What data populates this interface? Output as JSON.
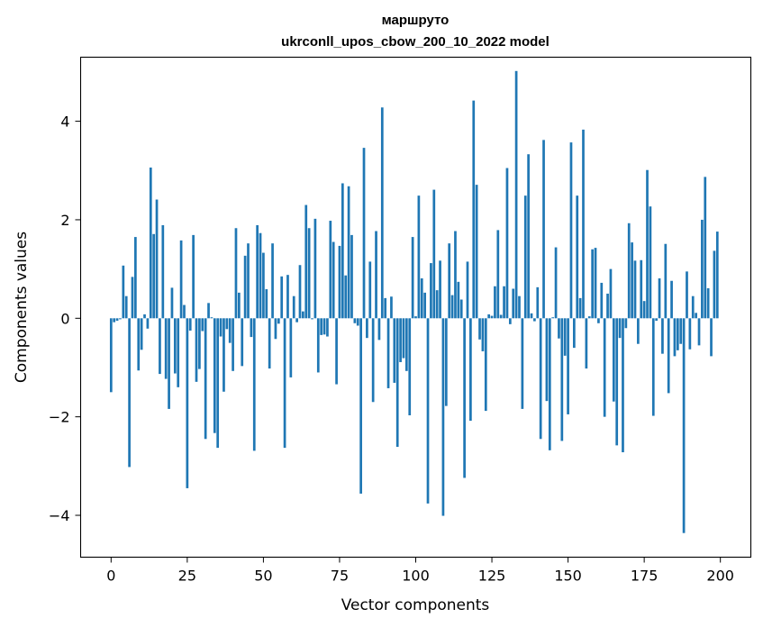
{
  "chart_data": {
    "type": "bar",
    "title": "маршруто",
    "subtitle": "ukrconll_upos_cbow_200_10_2022 model",
    "xlabel": "Vector components",
    "ylabel": "Components values",
    "xlim": [
      -10,
      210
    ],
    "ylim": [
      -4.85,
      5.3
    ],
    "xticks": [
      0,
      25,
      50,
      75,
      100,
      125,
      150,
      175,
      200
    ],
    "yticks": [
      -4,
      -2,
      0,
      2,
      4
    ],
    "xtick_labels": [
      "0",
      "25",
      "50",
      "75",
      "100",
      "125",
      "150",
      "175",
      "200"
    ],
    "ytick_labels": [
      "−4",
      "−2",
      "0",
      "2",
      "4"
    ],
    "grid": false,
    "color": "#1f77b4",
    "values": [
      -1.5,
      -0.08,
      -0.05,
      -0.02,
      1.07,
      0.45,
      -3.02,
      0.84,
      1.65,
      -1.06,
      -0.64,
      0.08,
      -0.21,
      3.06,
      1.71,
      2.41,
      -1.13,
      1.89,
      -1.23,
      -1.84,
      0.62,
      -1.12,
      -1.4,
      1.58,
      0.27,
      -3.45,
      -0.25,
      1.69,
      -1.29,
      -1.03,
      -0.26,
      -2.45,
      0.31,
      0.02,
      -2.33,
      -2.63,
      -0.37,
      -1.49,
      -0.22,
      -0.5,
      -1.07,
      1.83,
      0.52,
      -0.97,
      1.27,
      1.52,
      -0.38,
      -2.69,
      1.89,
      1.73,
      1.33,
      0.59,
      -1.02,
      1.52,
      -0.42,
      -0.11,
      0.85,
      -2.63,
      0.88,
      -1.2,
      0.45,
      -0.08,
      1.08,
      0.14,
      2.3,
      1.83,
      -0.02,
      2.02,
      -1.1,
      -0.34,
      -0.33,
      -0.37,
      1.98,
      1.55,
      -1.34,
      1.47,
      2.74,
      0.87,
      2.68,
      1.69,
      -0.1,
      -0.15,
      -3.56,
      3.46,
      -0.4,
      1.15,
      -1.7,
      1.77,
      -0.44,
      4.28,
      0.41,
      -1.42,
      0.44,
      -1.31,
      -2.61,
      -0.89,
      -0.81,
      -1.07,
      -1.97,
      1.65,
      0.04,
      2.49,
      0.81,
      0.52,
      -3.76,
      1.12,
      2.61,
      0.57,
      1.17,
      -4.01,
      -1.78,
      1.52,
      0.47,
      1.77,
      0.74,
      0.38,
      -3.24,
      1.15,
      -2.08,
      4.42,
      2.71,
      -0.43,
      -0.67,
      -1.88,
      0.08,
      0.05,
      0.65,
      1.79,
      0.07,
      0.65,
      3.05,
      -0.12,
      0.6,
      5.02,
      0.45,
      -1.84,
      2.49,
      3.33,
      0.1,
      -0.06,
      0.63,
      -2.45,
      3.62,
      -1.68,
      -2.68,
      0.02,
      1.44,
      -0.41,
      -2.49,
      -0.76,
      -1.95,
      3.57,
      -0.6,
      2.49,
      0.41,
      3.83,
      -1.02,
      0.04,
      1.4,
      1.43,
      -0.1,
      0.72,
      -2.0,
      0.5,
      1.0,
      -1.69,
      -2.58,
      -0.4,
      -2.72,
      -0.2,
      1.93,
      1.54,
      1.17,
      -0.52,
      1.18,
      0.35,
      3.01,
      2.27,
      -1.98,
      -0.05,
      0.81,
      -0.72,
      1.51,
      -1.52,
      0.76,
      -0.77,
      -0.65,
      -0.52,
      -4.36,
      0.95,
      -0.63,
      0.45,
      0.11,
      -0.55,
      2.0,
      2.87,
      0.61,
      -0.77,
      1.37,
      1.76
    ]
  }
}
